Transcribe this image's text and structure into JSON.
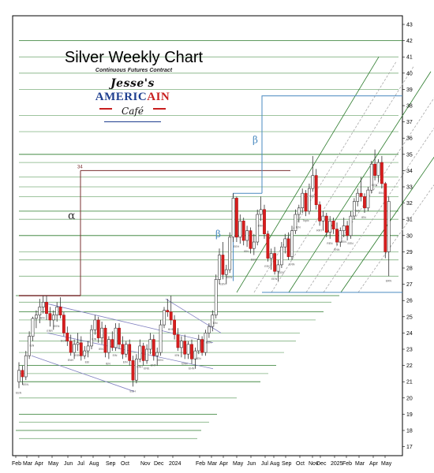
{
  "chart_data": {
    "type": "candlestick",
    "title": "Silver Weekly Chart",
    "subtitle": "Continuous Futures Contract",
    "ylim": [
      16,
      43
    ],
    "y_ticks": [
      17,
      18,
      19,
      20,
      21,
      22,
      23,
      24,
      25,
      26,
      27,
      28,
      29,
      30,
      31,
      32,
      33,
      34,
      35,
      36,
      37,
      38,
      39,
      40,
      41,
      42,
      43
    ],
    "x_labels": [
      "Feb",
      "Mar",
      "Apr",
      "May",
      "Jun",
      "Jul",
      "Aug",
      "Sep",
      "Oct",
      "Nov",
      "Dec",
      "2024",
      "Feb",
      "Mar",
      "Apr",
      "May",
      "Jun",
      "Jul",
      "Aug",
      "Sep",
      "Oct",
      "Nov",
      "Dec",
      "2025",
      "Feb",
      "Mar",
      "Apr",
      "May"
    ],
    "ohlc": [
      [
        21.0,
        22.2,
        20.6,
        21.7
      ],
      [
        21.7,
        22.0,
        20.8,
        21.3
      ],
      [
        21.3,
        22.9,
        21.1,
        22.6
      ],
      [
        22.6,
        24.1,
        22.4,
        23.8
      ],
      [
        23.8,
        25.0,
        23.5,
        24.9
      ],
      [
        24.9,
        25.4,
        24.3,
        25.1
      ],
      [
        25.1,
        26.1,
        24.6,
        25.6
      ],
      [
        25.6,
        26.3,
        25.2,
        25.9
      ],
      [
        25.9,
        26.3,
        24.8,
        25.2
      ],
      [
        25.2,
        25.6,
        24.4,
        24.8
      ],
      [
        24.8,
        25.4,
        24.2,
        25.1
      ],
      [
        25.1,
        25.9,
        24.7,
        25.6
      ],
      [
        25.6,
        26.2,
        24.9,
        25.1
      ],
      [
        25.1,
        25.3,
        23.8,
        24.0
      ],
      [
        24.0,
        24.4,
        23.2,
        23.5
      ],
      [
        23.5,
        23.9,
        22.6,
        22.8
      ],
      [
        22.8,
        23.6,
        22.4,
        23.3
      ],
      [
        23.3,
        24.0,
        22.9,
        23.4
      ],
      [
        23.4,
        23.8,
        22.3,
        22.6
      ],
      [
        22.6,
        23.2,
        22.4,
        22.9
      ],
      [
        22.9,
        23.5,
        22.5,
        23.2
      ],
      [
        23.2,
        24.5,
        23.0,
        24.2
      ],
      [
        24.2,
        25.1,
        23.9,
        24.8
      ],
      [
        24.8,
        25.0,
        23.4,
        23.7
      ],
      [
        23.7,
        24.7,
        23.3,
        24.3
      ],
      [
        24.3,
        24.5,
        22.5,
        22.8
      ],
      [
        22.8,
        23.8,
        22.4,
        23.6
      ],
      [
        23.6,
        24.1,
        22.9,
        23.1
      ],
      [
        23.1,
        24.6,
        22.9,
        24.3
      ],
      [
        24.3,
        24.6,
        23.0,
        23.3
      ],
      [
        23.3,
        23.8,
        22.4,
        22.7
      ],
      [
        22.7,
        23.5,
        22.5,
        23.3
      ],
      [
        23.3,
        23.6,
        22.0,
        22.3
      ],
      [
        22.3,
        22.6,
        20.7,
        21.1
      ],
      [
        21.1,
        22.7,
        20.9,
        22.4
      ],
      [
        22.4,
        23.6,
        22.2,
        23.2
      ],
      [
        23.2,
        23.4,
        22.0,
        22.3
      ],
      [
        22.3,
        23.3,
        22.1,
        23.0
      ],
      [
        23.0,
        24.0,
        22.7,
        23.6
      ],
      [
        23.6,
        23.9,
        22.3,
        22.6
      ],
      [
        22.6,
        23.1,
        22.0,
        22.8
      ],
      [
        22.8,
        24.8,
        22.6,
        24.5
      ],
      [
        24.5,
        25.6,
        24.3,
        25.4
      ],
      [
        25.4,
        26.1,
        25.0,
        25.3
      ],
      [
        25.3,
        26.3,
        24.5,
        24.8
      ],
      [
        24.8,
        25.1,
        23.6,
        23.9
      ],
      [
        23.9,
        24.3,
        22.9,
        23.1
      ],
      [
        23.1,
        23.8,
        22.5,
        23.5
      ],
      [
        23.5,
        23.9,
        22.4,
        22.7
      ],
      [
        22.7,
        23.5,
        22.4,
        23.3
      ],
      [
        23.3,
        23.6,
        22.1,
        22.4
      ],
      [
        22.4,
        23.1,
        21.8,
        22.9
      ],
      [
        22.9,
        23.9,
        22.7,
        23.6
      ],
      [
        23.6,
        23.8,
        22.6,
        22.8
      ],
      [
        22.8,
        24.2,
        22.6,
        24.0
      ],
      [
        24.0,
        24.6,
        23.7,
        24.4
      ],
      [
        24.4,
        25.4,
        24.1,
        25.1
      ],
      [
        25.1,
        27.6,
        24.9,
        27.3
      ],
      [
        27.3,
        29.2,
        27.0,
        28.8
      ],
      [
        28.8,
        29.6,
        27.3,
        27.6
      ],
      [
        27.6,
        28.2,
        27.0,
        27.9
      ],
      [
        27.9,
        30.2,
        27.7,
        29.9
      ],
      [
        29.9,
        32.6,
        29.6,
        32.3
      ],
      [
        32.3,
        32.4,
        29.6,
        29.9
      ],
      [
        29.9,
        31.3,
        29.5,
        30.9
      ],
      [
        30.9,
        31.1,
        29.4,
        29.7
      ],
      [
        29.7,
        30.6,
        29.3,
        30.3
      ],
      [
        30.3,
        30.5,
        28.9,
        29.2
      ],
      [
        29.2,
        30.1,
        28.8,
        29.6
      ],
      [
        29.6,
        31.6,
        29.4,
        31.3
      ],
      [
        31.3,
        32.4,
        30.9,
        31.6
      ],
      [
        31.6,
        31.9,
        29.8,
        30.1
      ],
      [
        30.1,
        30.3,
        28.4,
        28.6
      ],
      [
        28.6,
        29.2,
        27.9,
        28.9
      ],
      [
        28.9,
        29.3,
        27.6,
        27.8
      ],
      [
        27.8,
        28.5,
        27.2,
        28.2
      ],
      [
        28.2,
        29.6,
        28.0,
        29.3
      ],
      [
        29.3,
        30.1,
        28.9,
        29.8
      ],
      [
        29.8,
        30.2,
        28.5,
        28.7
      ],
      [
        28.7,
        30.6,
        28.5,
        30.3
      ],
      [
        30.3,
        31.6,
        30.1,
        31.3
      ],
      [
        31.3,
        31.9,
        30.8,
        31.7
      ],
      [
        31.7,
        32.9,
        31.4,
        32.6
      ],
      [
        32.6,
        32.8,
        31.2,
        31.5
      ],
      [
        31.5,
        33.2,
        31.3,
        32.9
      ],
      [
        32.9,
        34.9,
        32.7,
        33.7
      ],
      [
        33.7,
        34.1,
        31.6,
        31.9
      ],
      [
        31.9,
        32.1,
        30.6,
        30.9
      ],
      [
        30.9,
        31.5,
        30.3,
        31.2
      ],
      [
        31.2,
        31.4,
        29.9,
        30.2
      ],
      [
        30.2,
        31.2,
        29.8,
        30.9
      ],
      [
        30.9,
        31.1,
        30.1,
        30.4
      ],
      [
        30.4,
        30.8,
        29.4,
        29.6
      ],
      [
        29.6,
        30.5,
        29.3,
        30.3
      ],
      [
        30.3,
        31.1,
        29.9,
        30.6
      ],
      [
        30.6,
        30.9,
        29.7,
        30.0
      ],
      [
        30.0,
        31.5,
        29.8,
        31.2
      ],
      [
        31.2,
        32.3,
        31.0,
        32.1
      ],
      [
        32.1,
        32.9,
        31.8,
        32.6
      ],
      [
        32.6,
        33.6,
        32.1,
        32.4
      ],
      [
        32.4,
        32.6,
        31.4,
        31.7
      ],
      [
        31.7,
        33.0,
        31.5,
        32.8
      ],
      [
        32.8,
        34.6,
        32.6,
        34.4
      ],
      [
        34.4,
        35.3,
        33.4,
        33.7
      ],
      [
        33.7,
        34.7,
        33.3,
        34.5
      ],
      [
        34.5,
        34.9,
        32.9,
        33.2
      ],
      [
        33.2,
        33.3,
        28.6,
        29.0
      ],
      [
        29.0,
        32.4,
        27.5,
        32.1
      ]
    ],
    "annotations": {
      "alpha_label": "α",
      "alpha_target_label": "34",
      "beta_label_lower": "β",
      "beta_label_upper": "β",
      "candle_notes": [
        "EEN",
        "EEN",
        "IEN",
        "IEN",
        "ERR",
        "EEN",
        "ECN",
        "ENH",
        "ESN",
        "EEI",
        "EIN",
        "IEN",
        "IEN",
        "EIN",
        "EIN",
        "ECH",
        "ENH",
        "ENE",
        "ENT",
        "EEN",
        "HHE",
        "IEN",
        "ENN",
        "EHN",
        "LEN",
        "EEN",
        "EIN",
        "EEN",
        "EEN",
        "EEH",
        "IEN",
        "EEN",
        "ENH",
        "EEC",
        "EEN",
        "EEN",
        "ENN",
        "IEN",
        "Topic",
        "EFT",
        "RRT",
        "REN",
        "ENN",
        "EEN",
        "EEN",
        "EEN",
        "IEN",
        "EEN",
        "EIN",
        "ERN"
      ]
    },
    "grid": false,
    "legend": "none"
  },
  "logo": {
    "line1": "Jesse's",
    "line2_a": "AMERIC",
    "line2_b": "AIN",
    "line3": "Café"
  }
}
